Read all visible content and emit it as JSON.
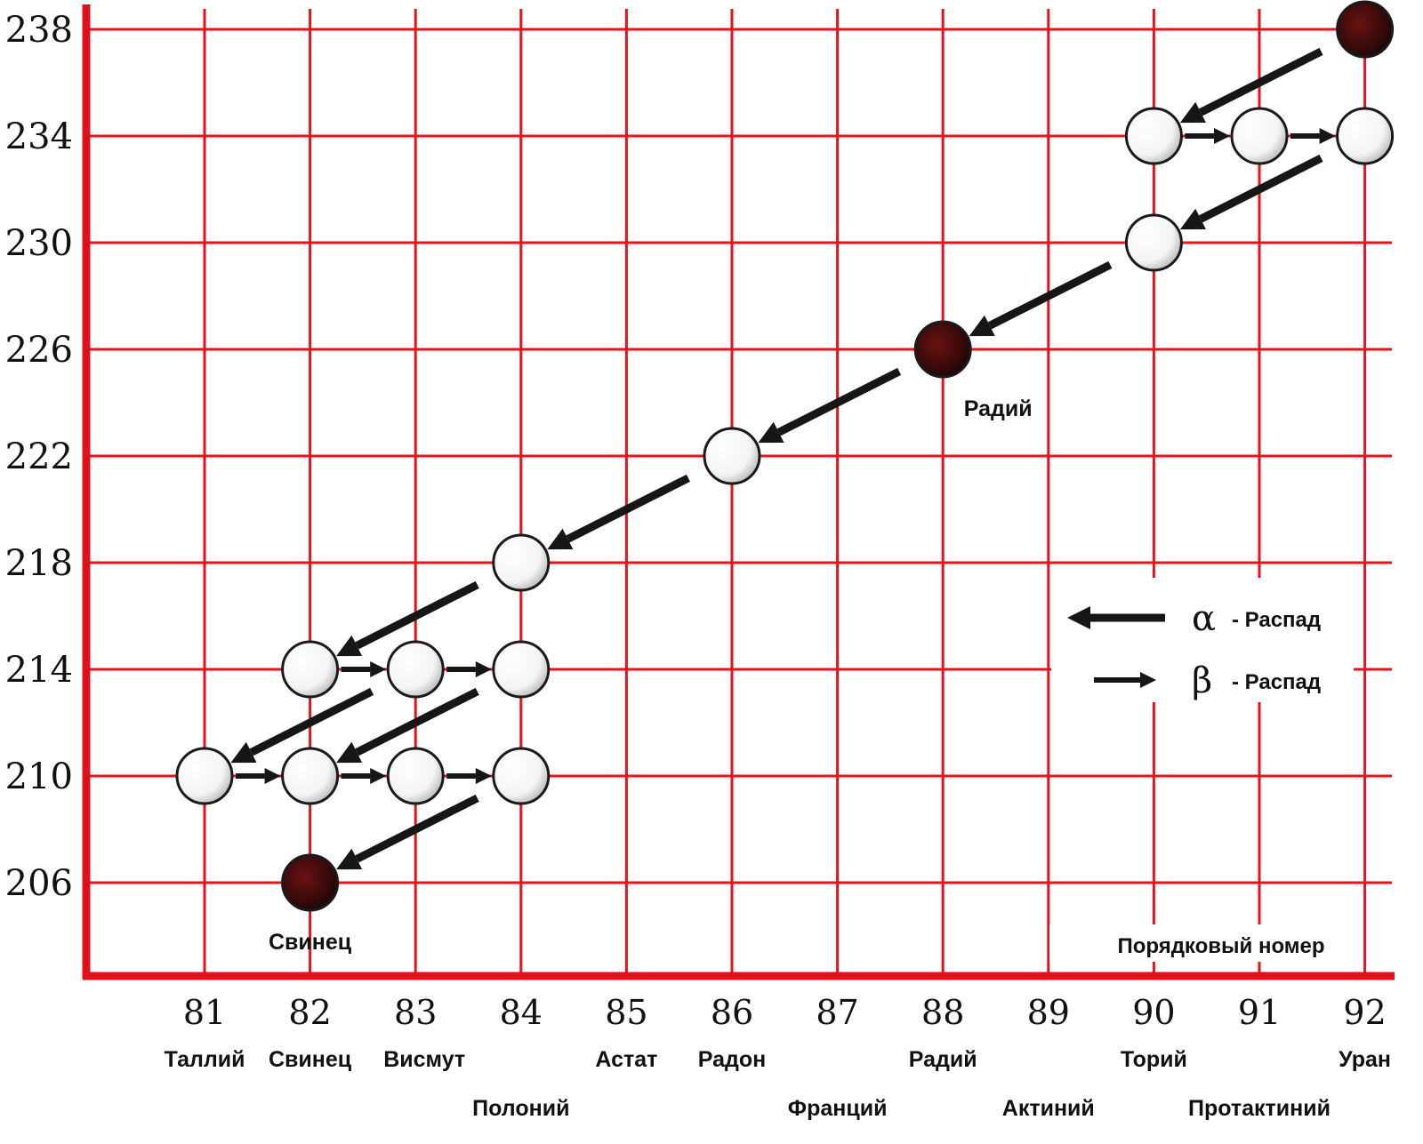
{
  "colors": {
    "grid": "#e8121e",
    "axis": "#e0101c",
    "arrow": "#161616",
    "ball_white": "#ffffff",
    "ball_dark": "#3a0a0a",
    "ball_stroke": "#1a1a1a"
  },
  "chart_data": {
    "type": "scatter",
    "description_hidden": false,
    "title": "",
    "xlabel": "Порядковый номер",
    "ylabel": "",
    "x_ticks": [
      81,
      82,
      83,
      84,
      85,
      86,
      87,
      88,
      89,
      90,
      91,
      92
    ],
    "y_ticks": [
      238,
      234,
      230,
      226,
      222,
      218,
      214,
      210,
      206
    ],
    "x_tick_labels": [
      "81",
      "82",
      "83",
      "84",
      "85",
      "86",
      "87",
      "88",
      "89",
      "90",
      "91",
      "92"
    ],
    "y_tick_labels": [
      "238",
      "234",
      "230",
      "226",
      "222",
      "218",
      "214",
      "210",
      "206"
    ],
    "xlim": [
      81,
      92
    ],
    "ylim": [
      206,
      238
    ],
    "element_names": [
      {
        "z": 81,
        "name": "Таллий",
        "row": 1
      },
      {
        "z": 82,
        "name": "Свинец",
        "row": 1
      },
      {
        "z": 83,
        "name": "Висмут",
        "row": 1
      },
      {
        "z": 84,
        "name": "Полоний",
        "row": 2
      },
      {
        "z": 85,
        "name": "Астат",
        "row": 1
      },
      {
        "z": 86,
        "name": "Радон",
        "row": 1
      },
      {
        "z": 87,
        "name": "Франций",
        "row": 2
      },
      {
        "z": 88,
        "name": "Радий",
        "row": 1
      },
      {
        "z": 89,
        "name": "Актиний",
        "row": 2
      },
      {
        "z": 90,
        "name": "Торий",
        "row": 1
      },
      {
        "z": 91,
        "name": "Протактиний",
        "row": 2
      },
      {
        "z": 92,
        "name": "Уран",
        "row": 1
      }
    ],
    "nuclides": [
      {
        "z": 92,
        "a": 238,
        "highlight": true
      },
      {
        "z": 90,
        "a": 234,
        "highlight": false
      },
      {
        "z": 91,
        "a": 234,
        "highlight": false
      },
      {
        "z": 92,
        "a": 234,
        "highlight": false
      },
      {
        "z": 90,
        "a": 230,
        "highlight": false
      },
      {
        "z": 88,
        "a": 226,
        "highlight": true,
        "label": "Радий"
      },
      {
        "z": 86,
        "a": 222,
        "highlight": false
      },
      {
        "z": 84,
        "a": 218,
        "highlight": false
      },
      {
        "z": 82,
        "a": 214,
        "highlight": false
      },
      {
        "z": 83,
        "a": 214,
        "highlight": false
      },
      {
        "z": 84,
        "a": 214,
        "highlight": false
      },
      {
        "z": 81,
        "a": 210,
        "highlight": false
      },
      {
        "z": 82,
        "a": 210,
        "highlight": false
      },
      {
        "z": 83,
        "a": 210,
        "highlight": false
      },
      {
        "z": 84,
        "a": 210,
        "highlight": false
      },
      {
        "z": 82,
        "a": 206,
        "highlight": true,
        "label": "Свинец"
      }
    ],
    "decays": [
      {
        "kind": "alpha",
        "from": [
          92,
          238
        ],
        "to": [
          90,
          234
        ]
      },
      {
        "kind": "beta",
        "from": [
          90,
          234
        ],
        "to": [
          91,
          234
        ]
      },
      {
        "kind": "beta",
        "from": [
          91,
          234
        ],
        "to": [
          92,
          234
        ]
      },
      {
        "kind": "alpha",
        "from": [
          92,
          234
        ],
        "to": [
          90,
          230
        ]
      },
      {
        "kind": "alpha",
        "from": [
          90,
          230
        ],
        "to": [
          88,
          226
        ]
      },
      {
        "kind": "alpha",
        "from": [
          88,
          226
        ],
        "to": [
          86,
          222
        ]
      },
      {
        "kind": "alpha",
        "from": [
          86,
          222
        ],
        "to": [
          84,
          218
        ]
      },
      {
        "kind": "alpha",
        "from": [
          84,
          218
        ],
        "to": [
          82,
          214
        ]
      },
      {
        "kind": "beta",
        "from": [
          82,
          214
        ],
        "to": [
          83,
          214
        ]
      },
      {
        "kind": "beta",
        "from": [
          83,
          214
        ],
        "to": [
          84,
          214
        ]
      },
      {
        "kind": "alpha",
        "from": [
          83,
          214
        ],
        "to": [
          81,
          210
        ]
      },
      {
        "kind": "alpha",
        "from": [
          84,
          214
        ],
        "to": [
          82,
          210
        ]
      },
      {
        "kind": "beta",
        "from": [
          81,
          210
        ],
        "to": [
          82,
          210
        ]
      },
      {
        "kind": "beta",
        "from": [
          82,
          210
        ],
        "to": [
          83,
          210
        ]
      },
      {
        "kind": "beta",
        "from": [
          83,
          210
        ],
        "to": [
          84,
          210
        ]
      },
      {
        "kind": "alpha",
        "from": [
          84,
          210
        ],
        "to": [
          82,
          206
        ]
      }
    ],
    "legend": [
      {
        "kind": "alpha",
        "symbol": "α",
        "text": "- Распад"
      },
      {
        "kind": "beta",
        "symbol": "β",
        "text": "- Распад"
      }
    ],
    "legend_position": "right-middle",
    "grid": true
  }
}
